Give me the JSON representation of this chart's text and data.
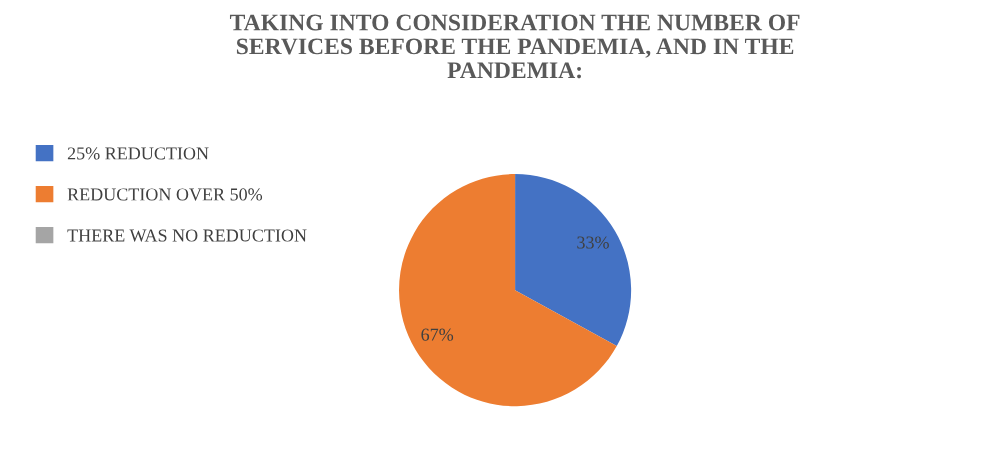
{
  "chart_data": {
    "type": "pie",
    "title": "TAKING INTO CONSIDERATION THE NUMBER OF\nSERVICES BEFORE THE PANDEMIA, AND IN THE\nPANDEMIA:",
    "categories": [
      "25% REDUCTION",
      "REDUCTION OVER 50%",
      "THERE WAS NO REDUCTION"
    ],
    "values": [
      33,
      67,
      0
    ],
    "colors": [
      "#4472c4",
      "#ed7d31",
      "#a5a5a5"
    ],
    "value_labels": [
      "33%",
      "67%",
      null
    ],
    "legend": "left"
  }
}
